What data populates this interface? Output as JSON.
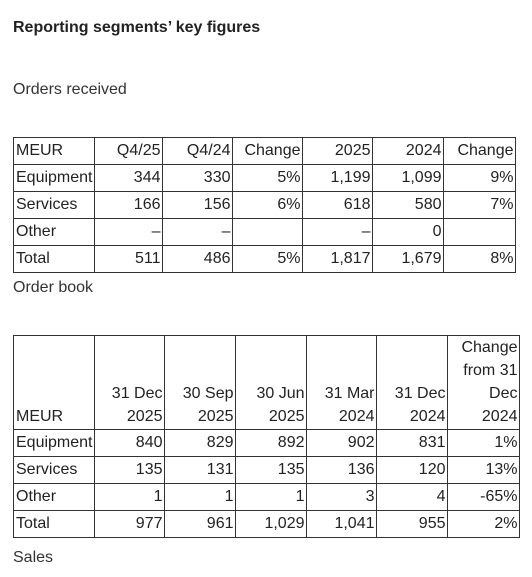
{
  "title": "Reporting segments’ key figures",
  "orders_received": {
    "label": "Orders received",
    "header": [
      "MEUR",
      "Q4/25",
      "Q4/24",
      "Change",
      "2025",
      "2024",
      "Change"
    ],
    "rows": [
      [
        "Equipment",
        "344",
        "330",
        "5%",
        "1,199",
        "1,099",
        "9%"
      ],
      [
        "Services",
        "166",
        "156",
        "6%",
        "618",
        "580",
        "7%"
      ],
      [
        "Other",
        "–",
        "–",
        "",
        "–",
        "0",
        ""
      ],
      [
        "Total",
        "511",
        "486",
        "5%",
        "1,817",
        "1,679",
        "8%"
      ]
    ]
  },
  "order_book": {
    "label": "Order book",
    "header": [
      [
        "MEUR"
      ],
      [
        "31 Dec",
        "2025"
      ],
      [
        "30 Sep",
        "2025"
      ],
      [
        "30 Jun",
        "2025"
      ],
      [
        "31 Mar",
        "2024"
      ],
      [
        "31 Dec",
        "2024"
      ],
      [
        "Change",
        "from 31",
        "Dec",
        "2024"
      ]
    ],
    "rows": [
      [
        "Equipment",
        "840",
        "829",
        "892",
        "902",
        "831",
        "1%"
      ],
      [
        "Services",
        "135",
        "131",
        "135",
        "136",
        "120",
        "13%"
      ],
      [
        "Other",
        "1",
        "1",
        "1",
        "3",
        "4",
        "-65%"
      ],
      [
        "Total",
        "977",
        "961",
        "1,029",
        "1,041",
        "955",
        "2%"
      ]
    ]
  },
  "sales": {
    "label": "Sales"
  }
}
